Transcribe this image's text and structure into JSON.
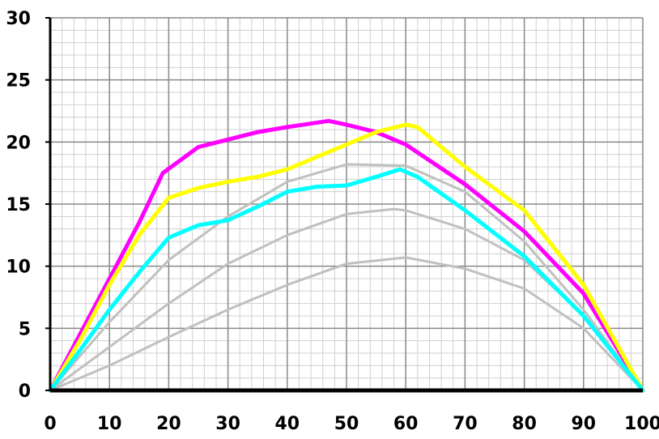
{
  "chart_data": {
    "type": "line",
    "title": "",
    "xlabel": "",
    "ylabel": "",
    "xlim": [
      0,
      100
    ],
    "ylim": [
      0,
      30
    ],
    "x_ticks": [
      "0",
      "10",
      "20",
      "30",
      "40",
      "50",
      "60",
      "70",
      "80",
      "90",
      "100"
    ],
    "y_ticks": [
      "0",
      "5",
      "10",
      "15",
      "20",
      "25",
      "30"
    ],
    "grid": true,
    "legend": "none",
    "series": [
      {
        "color": "#ff00ff",
        "points": [
          [
            0,
            0
          ],
          [
            5,
            4.5
          ],
          [
            10,
            9
          ],
          [
            15,
            13.5
          ],
          [
            19,
            17.5
          ],
          [
            25,
            19.6
          ],
          [
            30,
            20.2
          ],
          [
            35,
            20.8
          ],
          [
            40,
            21.2
          ],
          [
            47,
            21.7
          ],
          [
            50,
            21.4
          ],
          [
            55,
            20.8
          ],
          [
            60,
            19.8
          ],
          [
            70,
            16.6
          ],
          [
            80,
            12.8
          ],
          [
            90,
            7.8
          ],
          [
            100,
            0
          ]
        ]
      },
      {
        "color": "#ffff00",
        "points": [
          [
            0,
            0
          ],
          [
            5,
            4
          ],
          [
            10,
            8.5
          ],
          [
            15,
            12.5
          ],
          [
            20,
            15.5
          ],
          [
            25,
            16.3
          ],
          [
            30,
            16.8
          ],
          [
            35,
            17.2
          ],
          [
            40,
            17.8
          ],
          [
            45,
            18.8
          ],
          [
            50,
            19.8
          ],
          [
            55,
            20.8
          ],
          [
            60,
            21.4
          ],
          [
            62,
            21.2
          ],
          [
            70,
            18
          ],
          [
            80,
            14.5
          ],
          [
            90,
            8.5
          ],
          [
            100,
            0
          ]
        ]
      },
      {
        "color": "#00ffff",
        "points": [
          [
            0,
            0
          ],
          [
            5,
            3.2
          ],
          [
            10,
            6.5
          ],
          [
            15,
            9.5
          ],
          [
            20,
            12.3
          ],
          [
            25,
            13.3
          ],
          [
            30,
            13.7
          ],
          [
            35,
            14.8
          ],
          [
            40,
            16
          ],
          [
            45,
            16.4
          ],
          [
            50,
            16.5
          ],
          [
            55,
            17.2
          ],
          [
            59,
            17.8
          ],
          [
            62,
            17.2
          ],
          [
            70,
            14.5
          ],
          [
            80,
            10.8
          ],
          [
            90,
            6
          ],
          [
            100,
            0
          ]
        ]
      },
      {
        "color": "#c0c0c0",
        "points": [
          [
            0,
            0
          ],
          [
            10,
            5.5
          ],
          [
            20,
            10.5
          ],
          [
            30,
            14
          ],
          [
            40,
            16.8
          ],
          [
            50,
            18.2
          ],
          [
            60,
            18.1
          ],
          [
            70,
            16
          ],
          [
            80,
            12
          ],
          [
            90,
            6.5
          ],
          [
            100,
            0
          ]
        ]
      },
      {
        "color": "#c0c0c0",
        "points": [
          [
            0,
            0
          ],
          [
            10,
            3.5
          ],
          [
            20,
            7
          ],
          [
            30,
            10.2
          ],
          [
            40,
            12.5
          ],
          [
            50,
            14.2
          ],
          [
            58,
            14.6
          ],
          [
            60,
            14.5
          ],
          [
            70,
            13
          ],
          [
            80,
            10.5
          ],
          [
            90,
            6
          ],
          [
            100,
            0
          ]
        ]
      },
      {
        "color": "#c0c0c0",
        "points": [
          [
            0,
            0
          ],
          [
            10,
            2
          ],
          [
            20,
            4.3
          ],
          [
            30,
            6.5
          ],
          [
            40,
            8.5
          ],
          [
            50,
            10.2
          ],
          [
            60,
            10.7
          ],
          [
            70,
            9.8
          ],
          [
            80,
            8.2
          ],
          [
            90,
            5
          ],
          [
            100,
            0
          ]
        ]
      }
    ]
  }
}
